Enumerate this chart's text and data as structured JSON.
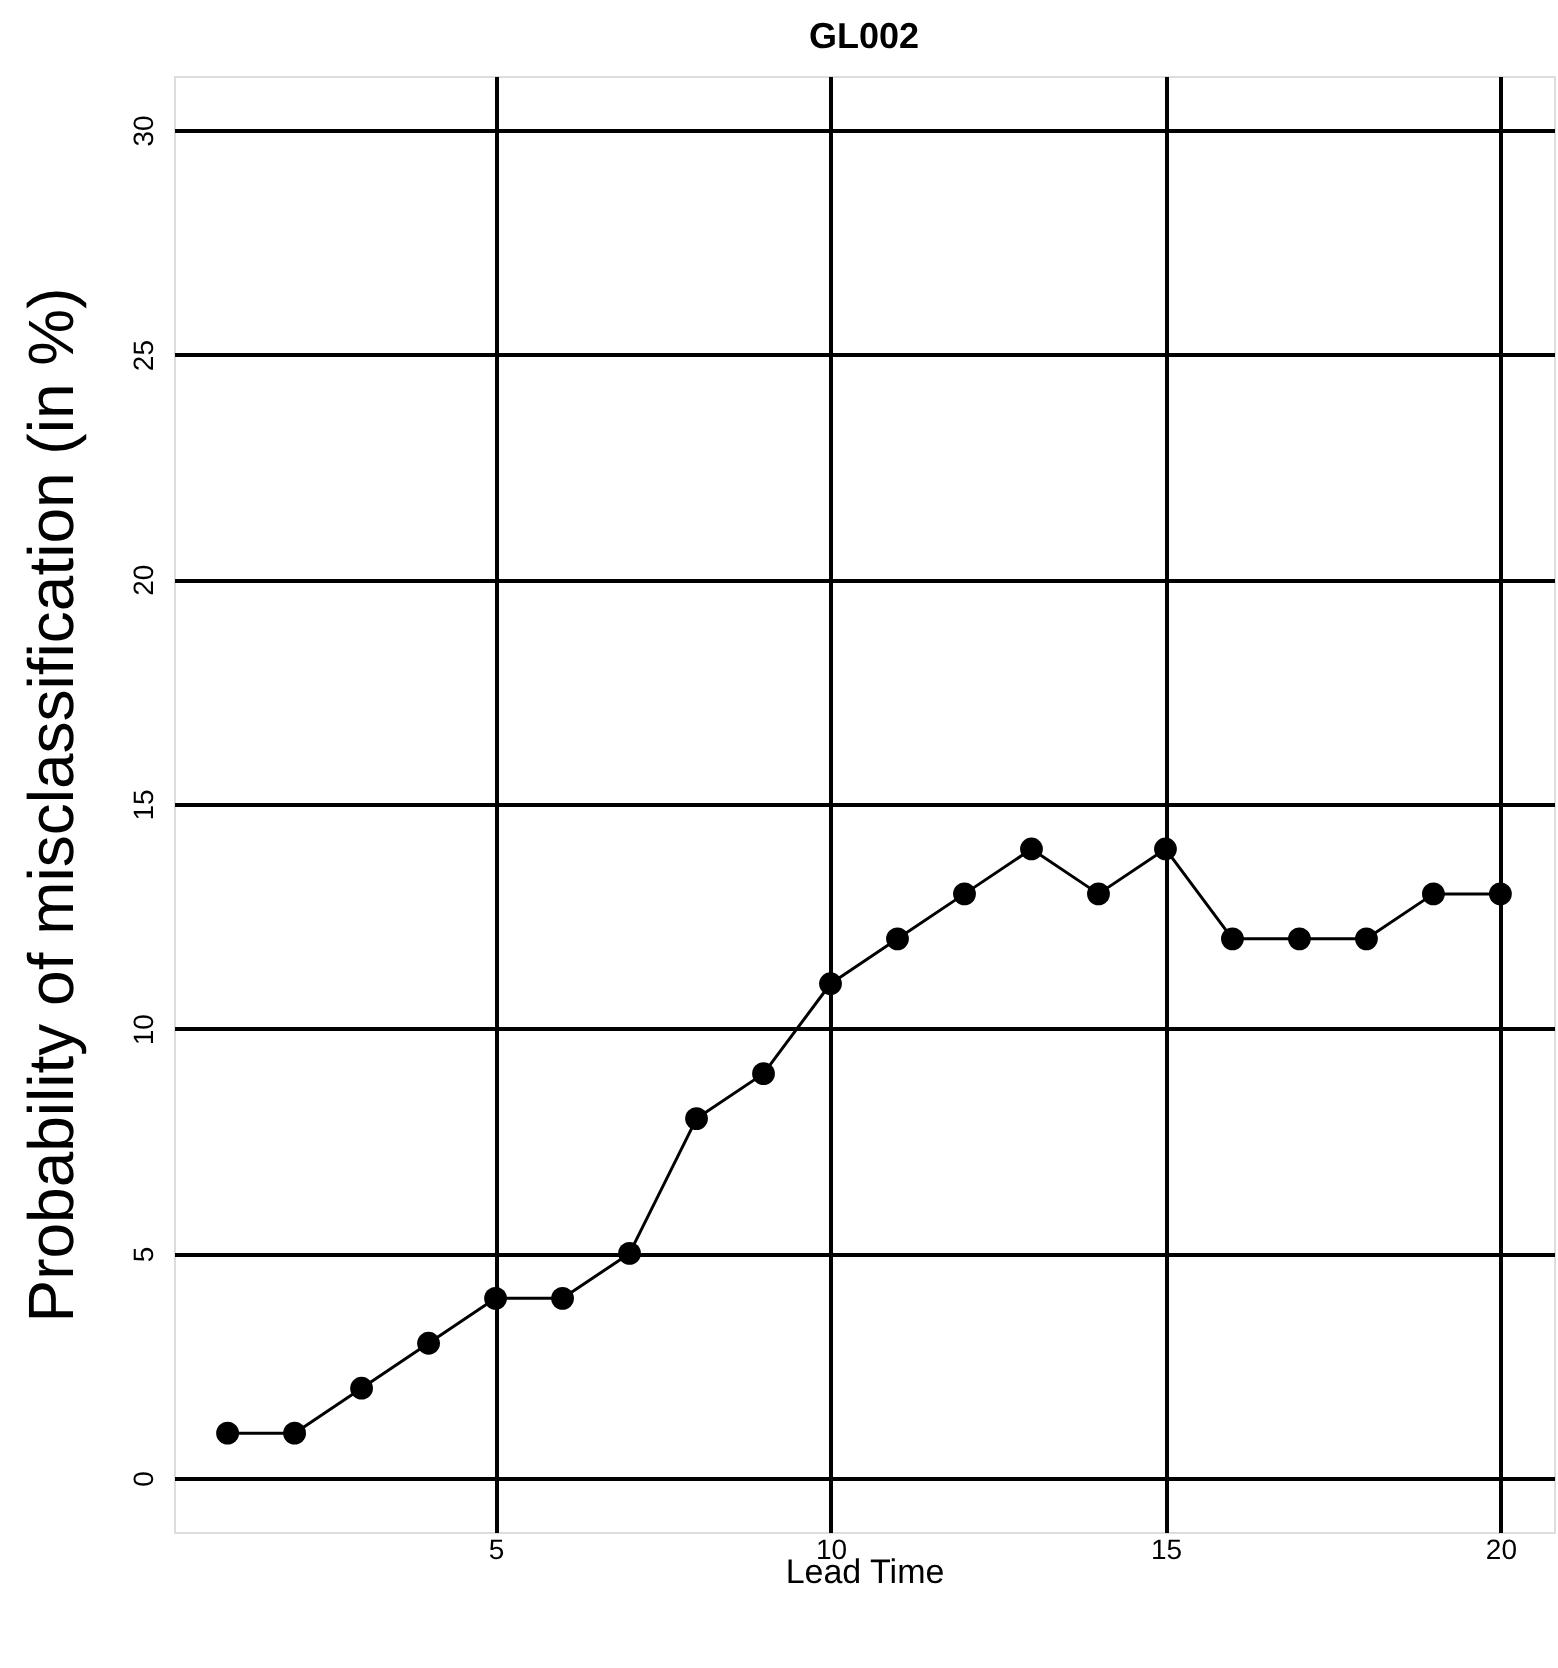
{
  "chart_data": {
    "type": "line",
    "title": "GL002",
    "xlabel": "Lead Time",
    "ylabel": "Probability of misclassification (in %)",
    "x": [
      1,
      2,
      3,
      4,
      5,
      6,
      7,
      8,
      9,
      10,
      11,
      12,
      13,
      14,
      15,
      16,
      17,
      18,
      19,
      20
    ],
    "series": [
      {
        "color": "#000000",
        "values": [
          1,
          1,
          2,
          3,
          4,
          4,
          5,
          8,
          9,
          11,
          12,
          13,
          14,
          13,
          14,
          12,
          12,
          12,
          13,
          13
        ]
      }
    ],
    "xlim": [
      0.2,
      20.8
    ],
    "ylim": [
      -1.2,
      31.2
    ],
    "xticks": [
      5,
      10,
      15,
      20
    ],
    "yticks": [
      0,
      5,
      10,
      15,
      20,
      25,
      30
    ],
    "grid": true,
    "marker": "circle",
    "line_style": "solid",
    "legend": false
  }
}
